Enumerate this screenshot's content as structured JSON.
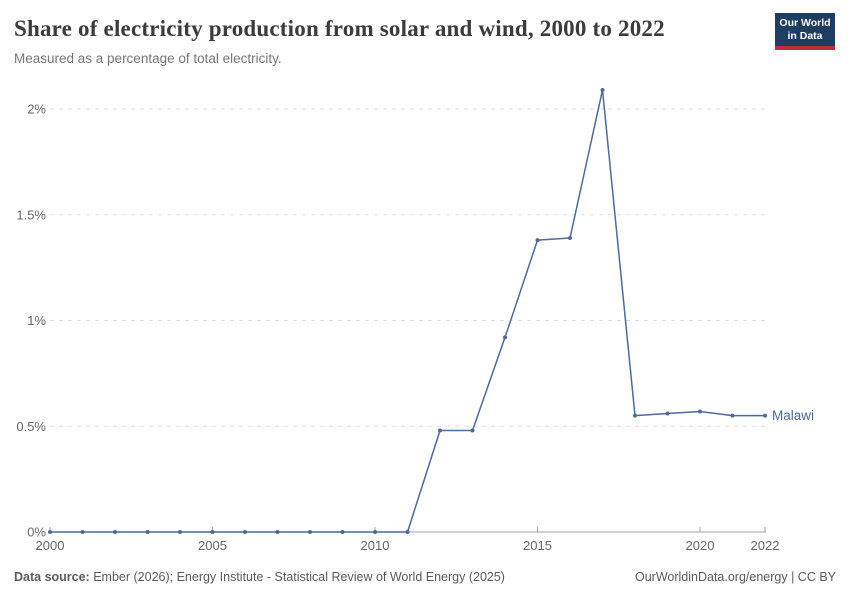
{
  "header": {
    "title": "Share of electricity production from solar and wind, 2000 to 2022",
    "subtitle": "Measured as a percentage of total electricity.",
    "logo": {
      "line1": "Our World",
      "line2": "in Data",
      "bg_color": "#1d3d63",
      "bar_color": "#bc2e3e"
    }
  },
  "chart_data": {
    "type": "line",
    "title": "Share of electricity production from solar and wind, 2000 to 2022",
    "x": [
      2000,
      2001,
      2002,
      2003,
      2004,
      2005,
      2006,
      2007,
      2008,
      2009,
      2010,
      2011,
      2012,
      2013,
      2014,
      2015,
      2016,
      2017,
      2018,
      2019,
      2020,
      2021,
      2022
    ],
    "series": [
      {
        "name": "Malawi",
        "values": [
          0,
          0,
          0,
          0,
          0,
          0,
          0,
          0,
          0,
          0,
          0,
          0,
          0.48,
          0.48,
          0.92,
          1.38,
          1.39,
          2.09,
          0.55,
          0.56,
          0.57,
          0.55,
          0.55
        ]
      }
    ],
    "ylim": [
      0,
      2.12
    ],
    "yticks": {
      "values": [
        0,
        0.5,
        1,
        1.5,
        2
      ],
      "labels": [
        "0%",
        "0.5%",
        "1%",
        "1.5%",
        "2%"
      ]
    },
    "xticks": {
      "values": [
        2000,
        2005,
        2010,
        2015,
        2020,
        2022
      ],
      "labels": [
        "2000",
        "2005",
        "2010",
        "2015",
        "2020",
        "2022"
      ]
    },
    "grid": "dashed horizontal",
    "legend_position": "end-of-line label",
    "colors": {
      "line": "#4c6a9c",
      "grid": "#dedede",
      "axis": "#a0a0a0",
      "tick_text": "#666666",
      "entity_label": "#4c6a9c"
    }
  },
  "footer": {
    "source_label": "Data source:",
    "source_text": " Ember (2026); Energy Institute - Statistical Review of World Energy (2025)",
    "right_text": "OurWorldinData.org/energy | CC BY"
  }
}
